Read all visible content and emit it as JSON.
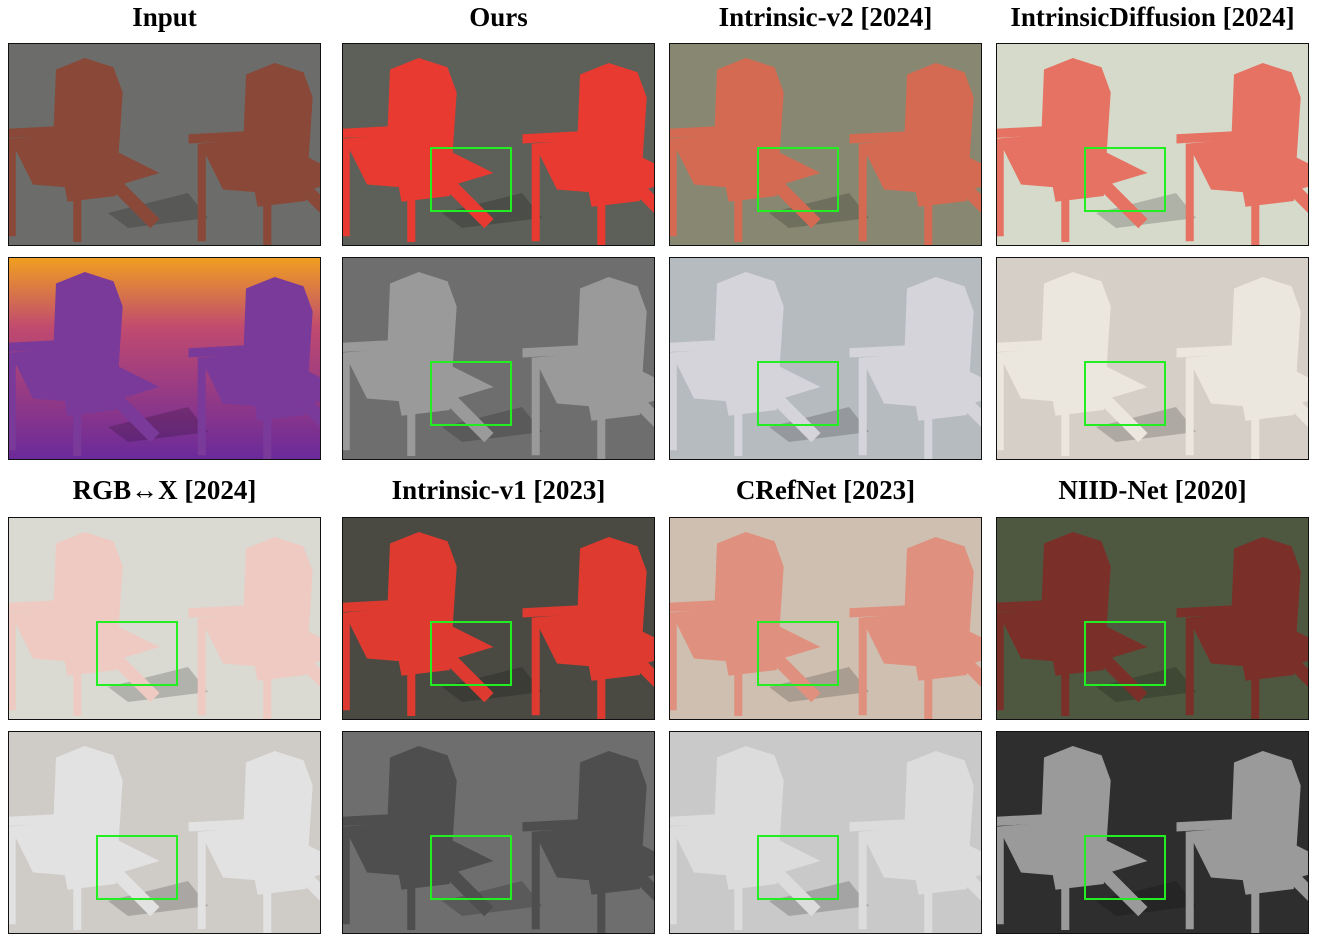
{
  "titles": [
    "Input",
    "Ours",
    "Intrinsic-v2 [2024]",
    "IntrinsicDiffusion [2024]",
    "RGB↔X [2024]",
    "Intrinsic-v1 [2023]",
    "CRefNet [2023]",
    "NIID-Net [2020]"
  ]
}
